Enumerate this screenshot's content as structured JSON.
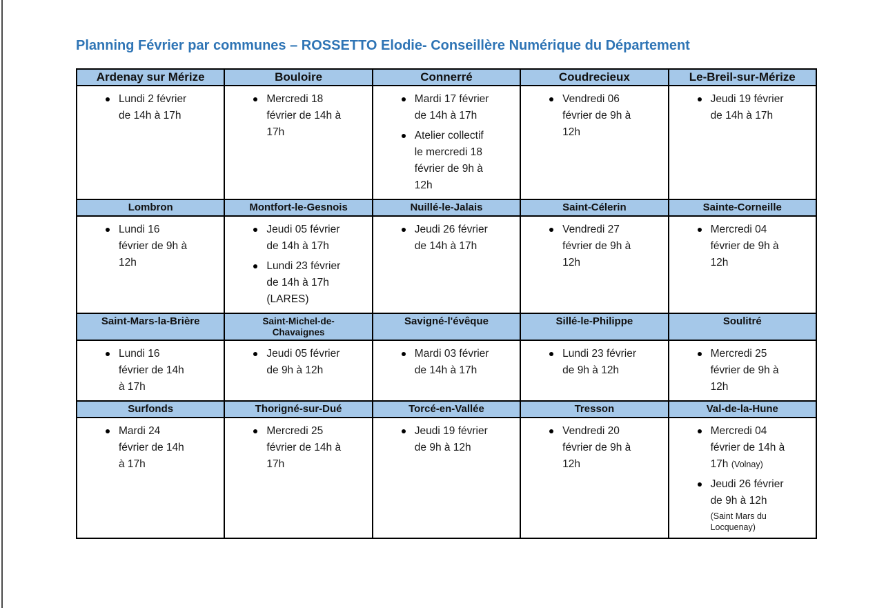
{
  "page": {
    "title": "Planning Février par communes – ROSSETTO Elodie- Conseillère Numérique du Département",
    "title_color": "#2E74B5",
    "header_bg": "#A5C8E9",
    "border_color": "#000000"
  },
  "table": {
    "groups": [
      {
        "communes": [
          {
            "name": "Ardenay sur Mérize",
            "events": [
              {
                "text": "Lundi 2 février\nde 14h à 17h"
              }
            ]
          },
          {
            "name": "Bouloire",
            "events": [
              {
                "text": "Mercredi 18\nfévrier de 14h à\n17h"
              }
            ]
          },
          {
            "name": "Connerré",
            "events": [
              {
                "text": "Mardi 17 février\nde 14h à 17h"
              },
              {
                "text": "Atelier collectif\nle mercredi 18\nfévrier de 9h à\n12h"
              }
            ]
          },
          {
            "name": "Coudrecieux",
            "events": [
              {
                "text": "Vendredi 06\nfévrier de 9h à\n12h"
              }
            ]
          },
          {
            "name": "Le-Breil-sur-Mérize",
            "events": [
              {
                "text": "Jeudi 19 février\nde 14h à 17h"
              }
            ]
          }
        ]
      },
      {
        "communes": [
          {
            "name": "Lombron",
            "events": [
              {
                "text": "Lundi 16\nfévrier de 9h à\n12h"
              }
            ]
          },
          {
            "name": "Montfort-le-Gesnois",
            "events": [
              {
                "text": "Jeudi 05 février\nde 14h à 17h"
              },
              {
                "text": "Lundi 23 février\nde 14h à 17h\n(LARES)"
              }
            ]
          },
          {
            "name": "Nuillé-le-Jalais",
            "events": [
              {
                "text": "Jeudi 26 février\nde 14h à 17h"
              }
            ]
          },
          {
            "name": "Saint-Célerin",
            "events": [
              {
                "text": "Vendredi 27\nfévrier de 9h à\n12h"
              }
            ]
          },
          {
            "name": "Sainte-Corneille",
            "events": [
              {
                "text": "Mercredi 04\nfévrier de 9h à\n12h"
              }
            ]
          }
        ]
      },
      {
        "communes": [
          {
            "name": "Saint-Mars-la-Brière",
            "events": [
              {
                "text": "Lundi 16\nfévrier de 14h\nà 17h"
              }
            ]
          },
          {
            "name": "Saint-Michel-de-\nChavaignes",
            "events": [
              {
                "text": "Jeudi 05 février\nde 9h à 12h"
              }
            ]
          },
          {
            "name": "Savigné-l'évêque",
            "events": [
              {
                "text": "Mardi 03 février\nde 14h à 17h"
              }
            ]
          },
          {
            "name": "Sillé-le-Philippe",
            "events": [
              {
                "text": "Lundi 23 février\nde 9h à 12h"
              }
            ]
          },
          {
            "name": "Soulitré",
            "events": [
              {
                "text": "Mercredi 25\nfévrier de 9h à\n12h"
              }
            ]
          }
        ]
      },
      {
        "communes": [
          {
            "name": "Surfonds",
            "events": [
              {
                "text": "Mardi 24\nfévrier de 14h\nà 17h"
              }
            ]
          },
          {
            "name": "Thorigné-sur-Dué",
            "events": [
              {
                "text": "Mercredi 25\nfévrier de 14h à\n17h"
              }
            ]
          },
          {
            "name": "Torcé-en-Vallée",
            "events": [
              {
                "text": "Jeudi 19 février\nde 9h à 12h"
              }
            ]
          },
          {
            "name": "Tresson",
            "events": [
              {
                "text": "Vendredi 20\nfévrier de 9h à\n12h"
              }
            ]
          },
          {
            "name": "Val-de-la-Hune",
            "events": [
              {
                "text": "Mercredi 04\nfévrier de 14h à\n17h",
                "note": "(Volnay)"
              },
              {
                "text": "Jeudi 26 février\nde 9h à 12h",
                "note_block": "(Saint Mars du\nLocquenay)"
              }
            ]
          }
        ]
      }
    ]
  }
}
